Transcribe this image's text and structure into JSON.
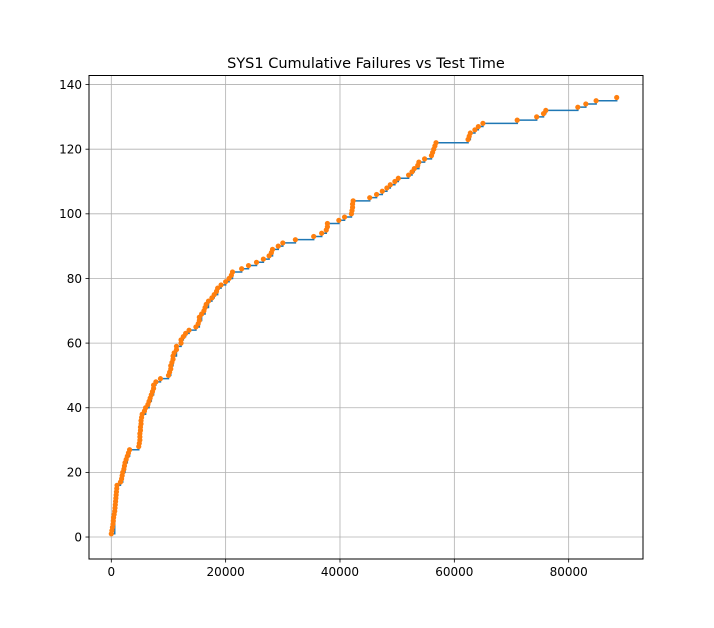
{
  "chart_data": {
    "type": "scatter",
    "title": "SYS1 Cumulative Failures vs Test Time",
    "xlabel": "",
    "ylabel": "",
    "xlim": [
      -3900,
      93000
    ],
    "ylim": [
      -6.8,
      142.8
    ],
    "x_ticks": [
      0,
      20000,
      40000,
      60000,
      80000
    ],
    "y_ticks": [
      0,
      20,
      40,
      60,
      80,
      100,
      120,
      140
    ],
    "grid": true,
    "colors": {
      "step": "#1f77b4",
      "markers": "#ff7f0e"
    },
    "series": [
      {
        "style": "step",
        "points": [
          [
            0,
            1
          ],
          [
            600,
            8
          ],
          [
            800,
            13
          ],
          [
            1000,
            16
          ],
          [
            1600,
            17
          ],
          [
            2000,
            20
          ],
          [
            2400,
            23
          ],
          [
            2800,
            25
          ],
          [
            3200,
            27
          ],
          [
            4800,
            28
          ],
          [
            5000,
            32
          ],
          [
            5200,
            36
          ],
          [
            5400,
            38
          ],
          [
            6000,
            40
          ],
          [
            6600,
            42
          ],
          [
            7000,
            44
          ],
          [
            7400,
            47
          ],
          [
            7800,
            48
          ],
          [
            8600,
            49
          ],
          [
            10000,
            50
          ],
          [
            10400,
            53
          ],
          [
            10800,
            56
          ],
          [
            11400,
            59
          ],
          [
            12200,
            61
          ],
          [
            12600,
            62
          ],
          [
            13000,
            63
          ],
          [
            13600,
            64
          ],
          [
            14800,
            65
          ],
          [
            15400,
            67
          ],
          [
            15800,
            69
          ],
          [
            16400,
            71
          ],
          [
            17000,
            73
          ],
          [
            17600,
            74
          ],
          [
            18000,
            75
          ],
          [
            18600,
            77
          ],
          [
            19200,
            78
          ],
          [
            20000,
            79
          ],
          [
            20600,
            80
          ],
          [
            21200,
            82
          ],
          [
            22800,
            83
          ],
          [
            24000,
            84
          ],
          [
            25400,
            85
          ],
          [
            26600,
            86
          ],
          [
            27600,
            87
          ],
          [
            28200,
            89
          ],
          [
            29200,
            90
          ],
          [
            30000,
            91
          ],
          [
            32200,
            92
          ],
          [
            35400,
            93
          ],
          [
            36800,
            94
          ],
          [
            37600,
            95
          ],
          [
            37800,
            97
          ],
          [
            39800,
            98
          ],
          [
            40800,
            99
          ],
          [
            42000,
            100
          ],
          [
            42200,
            102
          ],
          [
            42300,
            104
          ],
          [
            45200,
            105
          ],
          [
            46400,
            106
          ],
          [
            47400,
            107
          ],
          [
            48200,
            108
          ],
          [
            48800,
            109
          ],
          [
            49600,
            110
          ],
          [
            50200,
            111
          ],
          [
            52000,
            112
          ],
          [
            52600,
            113
          ],
          [
            53000,
            114
          ],
          [
            53800,
            116
          ],
          [
            54800,
            117
          ],
          [
            56000,
            118
          ],
          [
            56200,
            119
          ],
          [
            56400,
            120
          ],
          [
            56600,
            121
          ],
          [
            56800,
            122
          ],
          [
            62400,
            123
          ],
          [
            62800,
            125
          ],
          [
            63600,
            126
          ],
          [
            64200,
            127
          ],
          [
            65000,
            128
          ],
          [
            71000,
            129
          ],
          [
            74400,
            130
          ],
          [
            75600,
            131
          ],
          [
            76000,
            132
          ],
          [
            81600,
            133
          ],
          [
            83000,
            134
          ],
          [
            84800,
            135
          ],
          [
            88400,
            136
          ]
        ]
      },
      {
        "style": "markers",
        "points": [
          [
            0,
            1
          ],
          [
            100,
            2
          ],
          [
            200,
            3
          ],
          [
            300,
            4
          ],
          [
            350,
            5
          ],
          [
            400,
            6
          ],
          [
            500,
            7
          ],
          [
            600,
            8
          ],
          [
            650,
            9
          ],
          [
            700,
            10
          ],
          [
            750,
            11
          ],
          [
            800,
            12
          ],
          [
            850,
            13
          ],
          [
            900,
            14
          ],
          [
            950,
            15
          ],
          [
            1000,
            16
          ],
          [
            1600,
            17
          ],
          [
            1800,
            18
          ],
          [
            1900,
            19
          ],
          [
            2000,
            20
          ],
          [
            2200,
            21
          ],
          [
            2300,
            22
          ],
          [
            2400,
            23
          ],
          [
            2600,
            24
          ],
          [
            2800,
            25
          ],
          [
            3000,
            26
          ],
          [
            3200,
            27
          ],
          [
            4800,
            28
          ],
          [
            4900,
            29
          ],
          [
            5000,
            30
          ],
          [
            5000,
            31
          ],
          [
            5000,
            32
          ],
          [
            5100,
            33
          ],
          [
            5100,
            34
          ],
          [
            5200,
            35
          ],
          [
            5200,
            36
          ],
          [
            5300,
            37
          ],
          [
            5400,
            38
          ],
          [
            5800,
            39
          ],
          [
            6000,
            40
          ],
          [
            6400,
            41
          ],
          [
            6600,
            42
          ],
          [
            6800,
            43
          ],
          [
            7000,
            44
          ],
          [
            7200,
            45
          ],
          [
            7400,
            46
          ],
          [
            7400,
            47
          ],
          [
            7800,
            48
          ],
          [
            8600,
            49
          ],
          [
            10000,
            50
          ],
          [
            10200,
            51
          ],
          [
            10400,
            52
          ],
          [
            10400,
            53
          ],
          [
            10600,
            54
          ],
          [
            10800,
            55
          ],
          [
            10800,
            56
          ],
          [
            11000,
            57
          ],
          [
            11400,
            58
          ],
          [
            11400,
            59
          ],
          [
            12200,
            60
          ],
          [
            12200,
            61
          ],
          [
            12600,
            62
          ],
          [
            13000,
            63
          ],
          [
            13600,
            64
          ],
          [
            14800,
            65
          ],
          [
            15200,
            66
          ],
          [
            15400,
            67
          ],
          [
            15400,
            68
          ],
          [
            15800,
            69
          ],
          [
            16200,
            70
          ],
          [
            16400,
            71
          ],
          [
            16600,
            72
          ],
          [
            17000,
            73
          ],
          [
            17600,
            74
          ],
          [
            18000,
            75
          ],
          [
            18400,
            76
          ],
          [
            18600,
            77
          ],
          [
            19200,
            78
          ],
          [
            20000,
            79
          ],
          [
            20600,
            80
          ],
          [
            21000,
            81
          ],
          [
            21200,
            82
          ],
          [
            22800,
            83
          ],
          [
            24000,
            84
          ],
          [
            25400,
            85
          ],
          [
            26600,
            86
          ],
          [
            27600,
            87
          ],
          [
            28000,
            88
          ],
          [
            28200,
            89
          ],
          [
            29200,
            90
          ],
          [
            30000,
            91
          ],
          [
            32200,
            92
          ],
          [
            35400,
            93
          ],
          [
            36800,
            94
          ],
          [
            37600,
            95
          ],
          [
            37800,
            96
          ],
          [
            37800,
            97
          ],
          [
            39800,
            98
          ],
          [
            40800,
            99
          ],
          [
            42000,
            100
          ],
          [
            42100,
            101
          ],
          [
            42200,
            102
          ],
          [
            42200,
            103
          ],
          [
            42300,
            104
          ],
          [
            45200,
            105
          ],
          [
            46400,
            106
          ],
          [
            47400,
            107
          ],
          [
            48200,
            108
          ],
          [
            48800,
            109
          ],
          [
            49600,
            110
          ],
          [
            50200,
            111
          ],
          [
            52000,
            112
          ],
          [
            52600,
            113
          ],
          [
            53000,
            114
          ],
          [
            53600,
            115
          ],
          [
            53800,
            116
          ],
          [
            54800,
            117
          ],
          [
            56000,
            118
          ],
          [
            56200,
            119
          ],
          [
            56400,
            120
          ],
          [
            56600,
            121
          ],
          [
            56800,
            122
          ],
          [
            62400,
            123
          ],
          [
            62600,
            124
          ],
          [
            62800,
            125
          ],
          [
            63600,
            126
          ],
          [
            64200,
            127
          ],
          [
            65000,
            128
          ],
          [
            71000,
            129
          ],
          [
            74400,
            130
          ],
          [
            75600,
            131
          ],
          [
            76000,
            132
          ],
          [
            81600,
            133
          ],
          [
            83000,
            134
          ],
          [
            84800,
            135
          ],
          [
            88400,
            136
          ]
        ]
      }
    ]
  }
}
